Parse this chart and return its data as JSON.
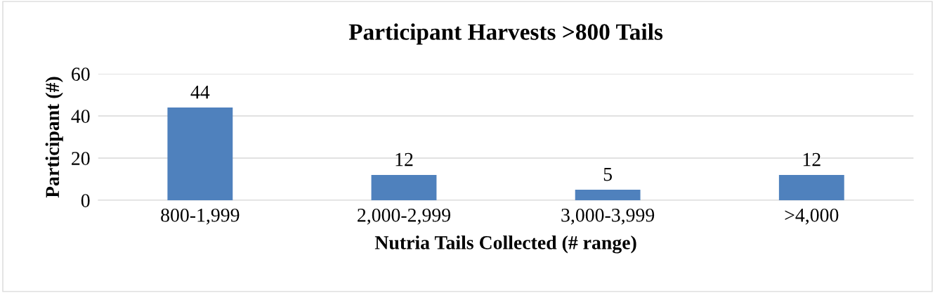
{
  "chart_data": {
    "type": "bar",
    "title": "Participant Harvests >800 Tails",
    "xlabel": "Nutria Tails Collected (# range)",
    "ylabel": "Participant (#)",
    "categories": [
      "800-1,999",
      "2,000-2,999",
      "3,000-3,999",
      ">4,000"
    ],
    "values": [
      44,
      12,
      5,
      12
    ],
    "color": "#4f81bd",
    "ylim": [
      0,
      60
    ],
    "yticks": [
      0,
      20,
      40,
      60
    ],
    "grid": "y",
    "data_labels": true
  }
}
